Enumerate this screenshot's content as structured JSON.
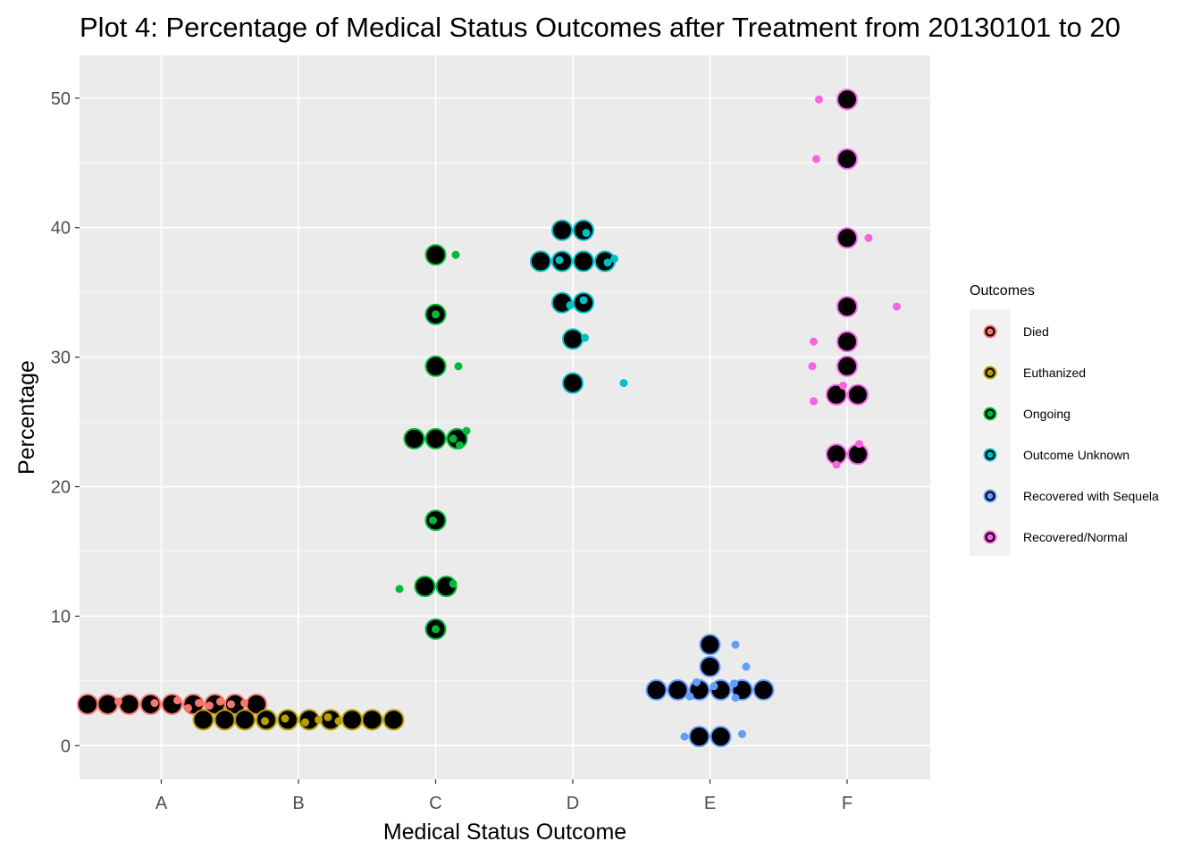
{
  "chart_data": {
    "type": "scatter",
    "title": "Plot 4: Percentage of Medical Status Outcomes after Treatment from 20130101 to 20",
    "xlabel": "Medical Status Outcome",
    "ylabel": "Percentage",
    "categories": [
      "A",
      "B",
      "C",
      "D",
      "E",
      "F"
    ],
    "y_ticks": [
      "0",
      "10",
      "20",
      "30",
      "40",
      "50"
    ],
    "ylim": [
      -2.6,
      53.3
    ],
    "grid": true,
    "legend": {
      "title": "Outcomes",
      "position": "right",
      "entries": [
        "Died",
        "Euthanized",
        "Ongoing",
        "Outcome Unknown",
        "Recovered with Sequela",
        "Recovered/Normal"
      ]
    },
    "series": [
      {
        "name": "Died",
        "color": "#F8766D",
        "category": "A",
        "dotplot": [
          {
            "x": -0.55,
            "y": 3.2
          },
          {
            "x": -0.4,
            "y": 3.2
          },
          {
            "x": -0.24,
            "y": 3.2
          },
          {
            "x": -0.08,
            "y": 3.2
          },
          {
            "x": 0.08,
            "y": 3.2
          },
          {
            "x": 0.24,
            "y": 3.2
          },
          {
            "x": 0.4,
            "y": 3.2
          },
          {
            "x": 0.55,
            "y": 3.2
          },
          {
            "x": 0.71,
            "y": 3.2
          }
        ],
        "jitter": [
          {
            "x": -0.32,
            "y": 3.4
          },
          {
            "x": -0.05,
            "y": 3.3
          },
          {
            "x": 0.12,
            "y": 3.5
          },
          {
            "x": 0.2,
            "y": 2.9
          },
          {
            "x": 0.28,
            "y": 3.3
          },
          {
            "x": 0.36,
            "y": 3.1
          },
          {
            "x": 0.44,
            "y": 3.4
          },
          {
            "x": 0.52,
            "y": 3.2
          },
          {
            "x": 0.62,
            "y": 3.3
          }
        ]
      },
      {
        "name": "Euthanized",
        "color": "#B79F00",
        "category": "B",
        "dotplot": [
          {
            "x": -0.71,
            "y": 2.0
          },
          {
            "x": -0.55,
            "y": 2.0
          },
          {
            "x": -0.4,
            "y": 2.0
          },
          {
            "x": -0.24,
            "y": 2.0
          },
          {
            "x": -0.08,
            "y": 2.0
          },
          {
            "x": 0.08,
            "y": 2.0
          },
          {
            "x": 0.24,
            "y": 2.0
          },
          {
            "x": 0.4,
            "y": 2.0
          },
          {
            "x": 0.55,
            "y": 2.0
          },
          {
            "x": 0.71,
            "y": 2.0
          }
        ],
        "jitter": [
          {
            "x": -0.25,
            "y": 1.9
          },
          {
            "x": -0.1,
            "y": 2.1
          },
          {
            "x": 0.05,
            "y": 1.8
          },
          {
            "x": 0.15,
            "y": 2.0
          },
          {
            "x": 0.22,
            "y": 2.2
          },
          {
            "x": 0.3,
            "y": 1.9
          }
        ]
      },
      {
        "name": "Ongoing",
        "color": "#00BA38",
        "category": "C",
        "dotplot": [
          {
            "x": 0,
            "y": 37.9
          },
          {
            "x": 0,
            "y": 33.3
          },
          {
            "x": 0,
            "y": 29.3
          },
          {
            "x": -0.16,
            "y": 23.7
          },
          {
            "x": 0,
            "y": 23.7
          },
          {
            "x": 0.16,
            "y": 23.7
          },
          {
            "x": 0,
            "y": 17.4
          },
          {
            "x": -0.08,
            "y": 12.3
          },
          {
            "x": 0.08,
            "y": 12.3
          },
          {
            "x": 0,
            "y": 9.0
          }
        ],
        "jitter": [
          {
            "x": 0.15,
            "y": 37.9
          },
          {
            "x": 0.0,
            "y": 33.3
          },
          {
            "x": 0.17,
            "y": 29.3
          },
          {
            "x": 0.13,
            "y": 23.7
          },
          {
            "x": 0.18,
            "y": 23.2
          },
          {
            "x": 0.23,
            "y": 24.3
          },
          {
            "x": -0.02,
            "y": 17.4
          },
          {
            "x": -0.27,
            "y": 12.1
          },
          {
            "x": 0.13,
            "y": 12.5
          },
          {
            "x": 0.0,
            "y": 9.0
          }
        ]
      },
      {
        "name": "Outcome Unknown",
        "color": "#00BFC4",
        "category": "D",
        "dotplot": [
          {
            "x": -0.08,
            "y": 39.8
          },
          {
            "x": 0.08,
            "y": 39.8
          },
          {
            "x": -0.24,
            "y": 37.4
          },
          {
            "x": -0.08,
            "y": 37.4
          },
          {
            "x": 0.08,
            "y": 37.4
          },
          {
            "x": 0.24,
            "y": 37.4
          },
          {
            "x": -0.08,
            "y": 34.2
          },
          {
            "x": 0.08,
            "y": 34.2
          },
          {
            "x": 0,
            "y": 31.4
          },
          {
            "x": 0,
            "y": 28.0
          }
        ],
        "jitter": [
          {
            "x": 0.1,
            "y": 39.6
          },
          {
            "x": -0.1,
            "y": 37.5
          },
          {
            "x": 0.26,
            "y": 37.3
          },
          {
            "x": 0.31,
            "y": 37.6
          },
          {
            "x": -0.02,
            "y": 34.0
          },
          {
            "x": 0.08,
            "y": 34.4
          },
          {
            "x": 0.09,
            "y": 31.5
          },
          {
            "x": 0.38,
            "y": 28.0
          }
        ]
      },
      {
        "name": "Recovered with Sequela",
        "color": "#619CFF",
        "category": "E",
        "dotplot": [
          {
            "x": 0,
            "y": 7.8
          },
          {
            "x": 0,
            "y": 6.1
          },
          {
            "x": -0.4,
            "y": 4.3
          },
          {
            "x": -0.24,
            "y": 4.3
          },
          {
            "x": -0.08,
            "y": 4.3
          },
          {
            "x": 0.08,
            "y": 4.3
          },
          {
            "x": 0.24,
            "y": 4.3
          },
          {
            "x": 0.4,
            "y": 4.3
          },
          {
            "x": -0.08,
            "y": 0.7
          },
          {
            "x": 0.08,
            "y": 0.7
          }
        ],
        "jitter": [
          {
            "x": 0.19,
            "y": 7.8
          },
          {
            "x": 0.27,
            "y": 6.1
          },
          {
            "x": -0.1,
            "y": 4.9
          },
          {
            "x": -0.15,
            "y": 3.8
          },
          {
            "x": 0.03,
            "y": 4.6
          },
          {
            "x": 0.18,
            "y": 4.8
          },
          {
            "x": 0.19,
            "y": 3.7
          },
          {
            "x": -0.19,
            "y": 0.7
          },
          {
            "x": 0.24,
            "y": 0.9
          }
        ]
      },
      {
        "name": "Recovered/Normal",
        "color": "#F564E3",
        "category": "F",
        "dotplot": [
          {
            "x": 0,
            "y": 49.9
          },
          {
            "x": 0,
            "y": 45.3
          },
          {
            "x": 0,
            "y": 39.2
          },
          {
            "x": 0,
            "y": 33.9
          },
          {
            "x": 0,
            "y": 31.2
          },
          {
            "x": 0,
            "y": 29.3
          },
          {
            "x": -0.08,
            "y": 27.1
          },
          {
            "x": 0.08,
            "y": 27.1
          },
          {
            "x": -0.08,
            "y": 22.5
          },
          {
            "x": 0.08,
            "y": 22.5
          }
        ],
        "jitter": [
          {
            "x": -0.21,
            "y": 49.9
          },
          {
            "x": -0.23,
            "y": 45.3
          },
          {
            "x": 0.16,
            "y": 39.2
          },
          {
            "x": 0.37,
            "y": 33.9
          },
          {
            "x": -0.25,
            "y": 31.2
          },
          {
            "x": -0.26,
            "y": 29.3
          },
          {
            "x": -0.03,
            "y": 27.8
          },
          {
            "x": -0.25,
            "y": 26.6
          },
          {
            "x": 0.09,
            "y": 23.3
          },
          {
            "x": -0.08,
            "y": 21.7
          }
        ]
      }
    ]
  }
}
